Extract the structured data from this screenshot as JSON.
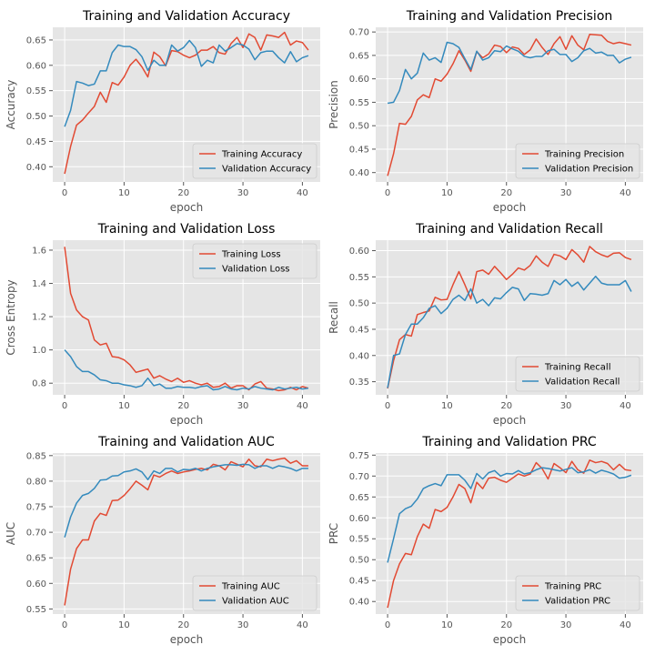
{
  "chart_data": [
    {
      "type": "line",
      "title": "Training and Validation Accuracy",
      "xlabel": "epoch",
      "ylabel": "Accuracy",
      "xlim": [
        -2,
        43
      ],
      "ylim": [
        0.37,
        0.675
      ],
      "xticks": [
        0,
        10,
        20,
        30,
        40
      ],
      "yticks": [
        0.4,
        0.45,
        0.5,
        0.55,
        0.6,
        0.65
      ],
      "ytick_labels": [
        "0.40",
        "0.45",
        "0.50",
        "0.55",
        "0.60",
        "0.65"
      ],
      "legend_position": "bottom-right",
      "grid": true,
      "x": [
        0,
        1,
        2,
        3,
        4,
        5,
        6,
        7,
        8,
        9,
        10,
        11,
        12,
        13,
        14,
        15,
        16,
        17,
        18,
        19,
        20,
        21,
        22,
        23,
        24,
        25,
        26,
        27,
        28,
        29,
        30,
        31,
        32,
        33,
        34,
        35,
        36,
        37,
        38,
        39,
        40,
        41
      ],
      "series": [
        {
          "name": "Training Accuracy",
          "color": "#E24A33",
          "values": [
            0.386,
            0.44,
            0.482,
            0.492,
            0.506,
            0.519,
            0.547,
            0.527,
            0.566,
            0.561,
            0.577,
            0.6,
            0.612,
            0.597,
            0.577,
            0.626,
            0.617,
            0.599,
            0.629,
            0.627,
            0.62,
            0.615,
            0.62,
            0.63,
            0.63,
            0.637,
            0.625,
            0.622,
            0.643,
            0.655,
            0.635,
            0.662,
            0.655,
            0.63,
            0.66,
            0.658,
            0.655,
            0.665,
            0.64,
            0.648,
            0.645,
            0.63
          ]
        },
        {
          "name": "Validation Accuracy",
          "color": "#348ABD",
          "values": [
            0.479,
            0.511,
            0.568,
            0.565,
            0.56,
            0.563,
            0.589,
            0.589,
            0.625,
            0.64,
            0.637,
            0.637,
            0.631,
            0.617,
            0.59,
            0.61,
            0.6,
            0.6,
            0.64,
            0.628,
            0.635,
            0.649,
            0.635,
            0.598,
            0.61,
            0.605,
            0.64,
            0.628,
            0.635,
            0.643,
            0.64,
            0.632,
            0.611,
            0.625,
            0.628,
            0.628,
            0.615,
            0.605,
            0.627,
            0.607,
            0.615,
            0.619
          ]
        }
      ]
    },
    {
      "type": "line",
      "title": "Training and Validation Precision",
      "xlabel": "epoch",
      "ylabel": "Precision",
      "xlim": [
        -2,
        43
      ],
      "ylim": [
        0.38,
        0.71
      ],
      "xticks": [
        0,
        10,
        20,
        30,
        40
      ],
      "yticks": [
        0.4,
        0.45,
        0.5,
        0.55,
        0.6,
        0.65,
        0.7
      ],
      "ytick_labels": [
        "0.40",
        "0.45",
        "0.50",
        "0.55",
        "0.60",
        "0.65",
        "0.70"
      ],
      "legend_position": "bottom-right",
      "grid": true,
      "x": [
        0,
        1,
        2,
        3,
        4,
        5,
        6,
        7,
        8,
        9,
        10,
        11,
        12,
        13,
        14,
        15,
        16,
        17,
        18,
        19,
        20,
        21,
        22,
        23,
        24,
        25,
        26,
        27,
        28,
        29,
        30,
        31,
        32,
        33,
        34,
        35,
        36,
        37,
        38,
        39,
        40,
        41
      ],
      "series": [
        {
          "name": "Training Precision",
          "color": "#E24A33",
          "values": [
            0.393,
            0.44,
            0.505,
            0.503,
            0.52,
            0.555,
            0.566,
            0.56,
            0.6,
            0.595,
            0.61,
            0.632,
            0.66,
            0.64,
            0.616,
            0.658,
            0.645,
            0.653,
            0.672,
            0.669,
            0.656,
            0.668,
            0.665,
            0.652,
            0.662,
            0.685,
            0.667,
            0.652,
            0.675,
            0.69,
            0.663,
            0.692,
            0.672,
            0.662,
            0.695,
            0.694,
            0.693,
            0.68,
            0.675,
            0.678,
            0.675,
            0.672
          ]
        },
        {
          "name": "Validation Precision",
          "color": "#348ABD",
          "values": [
            0.548,
            0.55,
            0.575,
            0.62,
            0.6,
            0.612,
            0.655,
            0.64,
            0.645,
            0.635,
            0.678,
            0.675,
            0.667,
            0.643,
            0.62,
            0.659,
            0.64,
            0.645,
            0.66,
            0.658,
            0.67,
            0.664,
            0.659,
            0.648,
            0.645,
            0.648,
            0.648,
            0.66,
            0.663,
            0.652,
            0.652,
            0.637,
            0.645,
            0.66,
            0.665,
            0.655,
            0.657,
            0.65,
            0.65,
            0.634,
            0.642,
            0.646
          ]
        }
      ]
    },
    {
      "type": "line",
      "title": "Training and Validation Loss",
      "xlabel": "epoch",
      "ylabel": "Cross Entropy",
      "xlim": [
        -2,
        43
      ],
      "ylim": [
        0.73,
        1.66
      ],
      "xticks": [
        0,
        10,
        20,
        30,
        40
      ],
      "yticks": [
        0.8,
        1.0,
        1.2,
        1.4,
        1.6
      ],
      "ytick_labels": [
        "0.8",
        "1.0",
        "1.2",
        "1.4",
        "1.6"
      ],
      "legend_position": "top-right",
      "grid": true,
      "x": [
        0,
        1,
        2,
        3,
        4,
        5,
        6,
        7,
        8,
        9,
        10,
        11,
        12,
        13,
        14,
        15,
        16,
        17,
        18,
        19,
        20,
        21,
        22,
        23,
        24,
        25,
        26,
        27,
        28,
        29,
        30,
        31,
        32,
        33,
        34,
        35,
        36,
        37,
        38,
        39,
        40,
        41
      ],
      "series": [
        {
          "name": "Training Loss",
          "color": "#E24A33",
          "values": [
            1.62,
            1.34,
            1.24,
            1.2,
            1.18,
            1.06,
            1.03,
            1.04,
            0.96,
            0.955,
            0.94,
            0.91,
            0.865,
            0.875,
            0.885,
            0.83,
            0.845,
            0.825,
            0.81,
            0.83,
            0.805,
            0.815,
            0.8,
            0.79,
            0.8,
            0.775,
            0.78,
            0.8,
            0.77,
            0.785,
            0.785,
            0.76,
            0.795,
            0.81,
            0.77,
            0.765,
            0.755,
            0.76,
            0.775,
            0.76,
            0.78,
            0.77
          ]
        },
        {
          "name": "Validation Loss",
          "color": "#348ABD",
          "values": [
            1.0,
            0.96,
            0.9,
            0.87,
            0.87,
            0.85,
            0.82,
            0.815,
            0.8,
            0.8,
            0.79,
            0.785,
            0.775,
            0.785,
            0.83,
            0.785,
            0.795,
            0.77,
            0.77,
            0.78,
            0.775,
            0.775,
            0.77,
            0.78,
            0.785,
            0.76,
            0.765,
            0.78,
            0.765,
            0.76,
            0.77,
            0.765,
            0.78,
            0.77,
            0.765,
            0.76,
            0.775,
            0.765,
            0.77,
            0.775,
            0.765,
            0.77
          ]
        }
      ]
    },
    {
      "type": "line",
      "title": "Training and Validation Recall",
      "xlabel": "epoch",
      "ylabel": "Recall",
      "xlim": [
        -2,
        43
      ],
      "ylim": [
        0.325,
        0.62
      ],
      "xticks": [
        0,
        10,
        20,
        30,
        40
      ],
      "yticks": [
        0.35,
        0.4,
        0.45,
        0.5,
        0.55,
        0.6
      ],
      "ytick_labels": [
        "0.35",
        "0.40",
        "0.45",
        "0.50",
        "0.55",
        "0.60"
      ],
      "legend_position": "bottom-right",
      "grid": true,
      "x": [
        0,
        1,
        2,
        3,
        4,
        5,
        6,
        7,
        8,
        9,
        10,
        11,
        12,
        13,
        14,
        15,
        16,
        17,
        18,
        19,
        20,
        21,
        22,
        23,
        24,
        25,
        26,
        27,
        28,
        29,
        30,
        31,
        32,
        33,
        34,
        35,
        36,
        37,
        38,
        39,
        40,
        41
      ],
      "series": [
        {
          "name": "Training Recall",
          "color": "#E24A33",
          "values": [
            0.337,
            0.39,
            0.43,
            0.44,
            0.437,
            0.478,
            0.482,
            0.485,
            0.511,
            0.506,
            0.507,
            0.535,
            0.56,
            0.535,
            0.508,
            0.56,
            0.563,
            0.555,
            0.57,
            0.558,
            0.545,
            0.555,
            0.567,
            0.563,
            0.572,
            0.59,
            0.578,
            0.57,
            0.593,
            0.59,
            0.583,
            0.602,
            0.592,
            0.578,
            0.608,
            0.598,
            0.592,
            0.588,
            0.595,
            0.596,
            0.587,
            0.583
          ]
        },
        {
          "name": "Validation Recall",
          "color": "#348ABD",
          "values": [
            0.338,
            0.4,
            0.403,
            0.44,
            0.46,
            0.46,
            0.472,
            0.49,
            0.495,
            0.48,
            0.49,
            0.507,
            0.515,
            0.505,
            0.527,
            0.5,
            0.507,
            0.495,
            0.51,
            0.508,
            0.52,
            0.53,
            0.527,
            0.505,
            0.518,
            0.517,
            0.515,
            0.518,
            0.543,
            0.535,
            0.545,
            0.532,
            0.54,
            0.525,
            0.538,
            0.551,
            0.538,
            0.535,
            0.535,
            0.535,
            0.543,
            0.522
          ]
        }
      ]
    },
    {
      "type": "line",
      "title": "Training and Validation AUC",
      "xlabel": "epoch",
      "ylabel": "AUC",
      "xlim": [
        -2,
        43
      ],
      "ylim": [
        0.54,
        0.855
      ],
      "xticks": [
        0,
        10,
        20,
        30,
        40
      ],
      "yticks": [
        0.55,
        0.6,
        0.65,
        0.7,
        0.75,
        0.8,
        0.85
      ],
      "ytick_labels": [
        "0.55",
        "0.60",
        "0.65",
        "0.70",
        "0.75",
        "0.80",
        "0.85"
      ],
      "legend_position": "bottom-right",
      "grid": true,
      "x": [
        0,
        1,
        2,
        3,
        4,
        5,
        6,
        7,
        8,
        9,
        10,
        11,
        12,
        13,
        14,
        15,
        16,
        17,
        18,
        19,
        20,
        21,
        22,
        23,
        24,
        25,
        26,
        27,
        28,
        29,
        30,
        31,
        32,
        33,
        34,
        35,
        36,
        37,
        38,
        39,
        40,
        41
      ],
      "series": [
        {
          "name": "Training AUC",
          "color": "#E24A33",
          "values": [
            0.557,
            0.628,
            0.668,
            0.685,
            0.685,
            0.722,
            0.737,
            0.733,
            0.762,
            0.763,
            0.772,
            0.785,
            0.8,
            0.792,
            0.783,
            0.812,
            0.808,
            0.815,
            0.82,
            0.815,
            0.818,
            0.82,
            0.823,
            0.825,
            0.822,
            0.833,
            0.83,
            0.822,
            0.838,
            0.833,
            0.828,
            0.843,
            0.83,
            0.828,
            0.843,
            0.84,
            0.843,
            0.845,
            0.835,
            0.84,
            0.83,
            0.83
          ]
        },
        {
          "name": "Validation AUC",
          "color": "#348ABD",
          "values": [
            0.69,
            0.73,
            0.757,
            0.772,
            0.776,
            0.786,
            0.802,
            0.803,
            0.81,
            0.811,
            0.818,
            0.82,
            0.824,
            0.818,
            0.803,
            0.82,
            0.815,
            0.825,
            0.825,
            0.818,
            0.823,
            0.822,
            0.825,
            0.82,
            0.825,
            0.828,
            0.83,
            0.832,
            0.832,
            0.831,
            0.833,
            0.832,
            0.825,
            0.83,
            0.83,
            0.825,
            0.83,
            0.828,
            0.825,
            0.82,
            0.825,
            0.825
          ]
        }
      ]
    },
    {
      "type": "line",
      "title": "Training and Validation PRC",
      "xlabel": "epoch",
      "ylabel": "PRC",
      "xlim": [
        -2,
        43
      ],
      "ylim": [
        0.37,
        0.755
      ],
      "xticks": [
        0,
        10,
        20,
        30,
        40
      ],
      "yticks": [
        0.4,
        0.45,
        0.5,
        0.55,
        0.6,
        0.65,
        0.7,
        0.75
      ],
      "ytick_labels": [
        "0.40",
        "0.45",
        "0.50",
        "0.55",
        "0.60",
        "0.65",
        "0.70",
        "0.75"
      ],
      "legend_position": "bottom-right",
      "grid": true,
      "x": [
        0,
        1,
        2,
        3,
        4,
        5,
        6,
        7,
        8,
        9,
        10,
        11,
        12,
        13,
        14,
        15,
        16,
        17,
        18,
        19,
        20,
        21,
        22,
        23,
        24,
        25,
        26,
        27,
        28,
        29,
        30,
        31,
        32,
        33,
        34,
        35,
        36,
        37,
        38,
        39,
        40,
        41
      ],
      "series": [
        {
          "name": "Training PRC",
          "color": "#E24A33",
          "values": [
            0.385,
            0.45,
            0.49,
            0.515,
            0.512,
            0.555,
            0.585,
            0.575,
            0.62,
            0.615,
            0.625,
            0.65,
            0.68,
            0.67,
            0.636,
            0.685,
            0.67,
            0.695,
            0.697,
            0.69,
            0.685,
            0.695,
            0.705,
            0.7,
            0.705,
            0.732,
            0.718,
            0.693,
            0.73,
            0.72,
            0.708,
            0.735,
            0.715,
            0.707,
            0.738,
            0.732,
            0.735,
            0.73,
            0.715,
            0.728,
            0.715,
            0.713
          ]
        },
        {
          "name": "Validation PRC",
          "color": "#348ABD",
          "values": [
            0.493,
            0.55,
            0.61,
            0.622,
            0.628,
            0.645,
            0.67,
            0.677,
            0.682,
            0.677,
            0.703,
            0.703,
            0.703,
            0.69,
            0.67,
            0.706,
            0.693,
            0.708,
            0.713,
            0.7,
            0.706,
            0.705,
            0.713,
            0.705,
            0.708,
            0.715,
            0.72,
            0.718,
            0.715,
            0.712,
            0.716,
            0.72,
            0.708,
            0.71,
            0.715,
            0.707,
            0.714,
            0.71,
            0.705,
            0.695,
            0.697,
            0.702
          ]
        }
      ]
    }
  ]
}
